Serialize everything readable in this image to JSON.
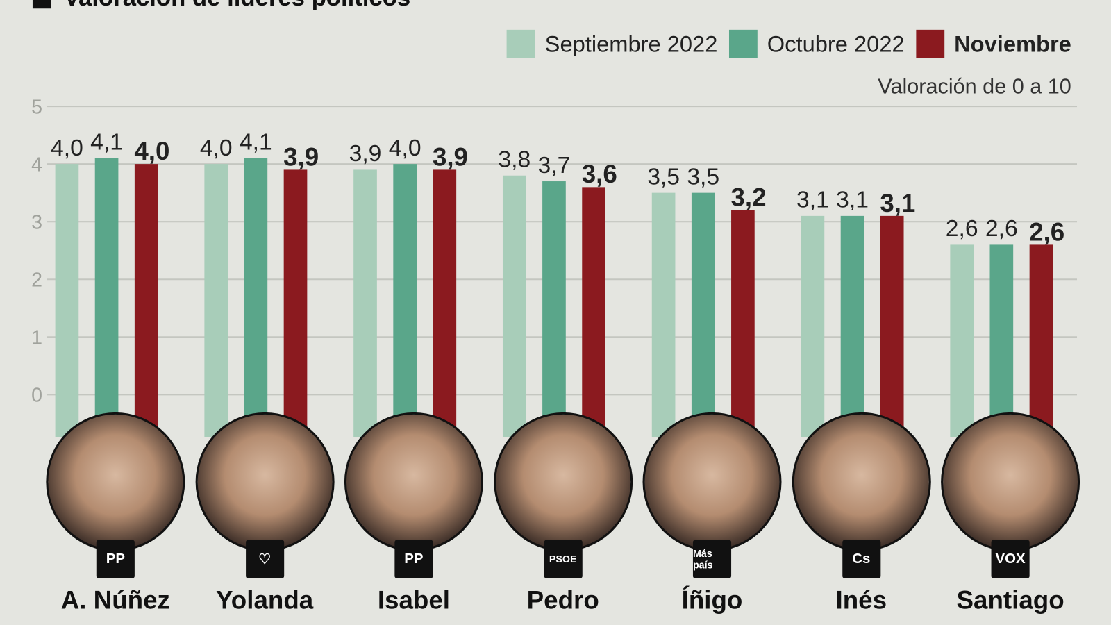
{
  "title": "Valoración de líderes políticos",
  "chart_data": {
    "type": "bar",
    "subtitle": "Valoración de 0 a 10",
    "categories": [
      "A. Núñez",
      "Yolanda",
      "Isabel",
      "Pedro",
      "Íñigo",
      "Inés",
      "Santiago"
    ],
    "series": [
      {
        "name": "Septiembre 2022",
        "color": "#a8cdb9",
        "values": [
          4.0,
          4.0,
          3.9,
          3.8,
          3.5,
          3.1,
          2.6
        ],
        "labels": [
          "4,0",
          "4,0",
          "3,9",
          "3,8",
          "3,5",
          "3,1",
          "2,6"
        ]
      },
      {
        "name": "Octubre 2022",
        "color": "#5aa68a",
        "values": [
          4.1,
          4.1,
          4.0,
          3.7,
          3.5,
          3.1,
          2.6
        ],
        "labels": [
          "4,1",
          "4,1",
          "4,0",
          "3,7",
          "3,5",
          "3,1",
          "2,6"
        ]
      },
      {
        "name": "Noviembre",
        "color": "#8b1a1f",
        "values": [
          4.0,
          3.9,
          3.9,
          3.6,
          3.2,
          3.1,
          2.6
        ],
        "labels": [
          "4,0",
          "3,9",
          "3,9",
          "3,6",
          "3,2",
          "3,1",
          "2,6"
        ]
      }
    ],
    "yticks": [
      "0",
      "1",
      "2",
      "3",
      "4",
      "5"
    ],
    "ylim": [
      0,
      5
    ],
    "grid": true,
    "legend": "top-right"
  },
  "party_logos": [
    {
      "name": "pp-logo",
      "text": "PP"
    },
    {
      "name": "sumar-heart-logo",
      "text": "♡"
    },
    {
      "name": "pp-logo",
      "text": "PP"
    },
    {
      "name": "psoe-logo",
      "text": "PSOE"
    },
    {
      "name": "mas-pais-logo",
      "text": "Más país"
    },
    {
      "name": "cs-logo",
      "text": "Cs"
    },
    {
      "name": "vox-logo",
      "text": "VOX"
    }
  ]
}
